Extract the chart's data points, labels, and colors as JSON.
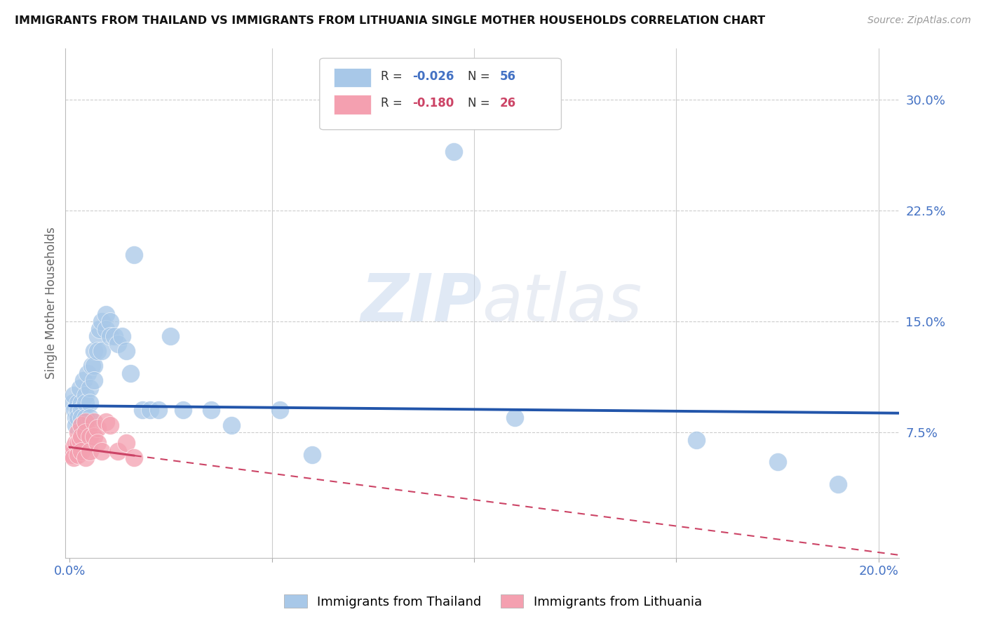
{
  "title": "IMMIGRANTS FROM THAILAND VS IMMIGRANTS FROM LITHUANIA SINGLE MOTHER HOUSEHOLDS CORRELATION CHART",
  "source": "Source: ZipAtlas.com",
  "ylabel": "Single Mother Households",
  "right_yticks": [
    "30.0%",
    "22.5%",
    "15.0%",
    "7.5%"
  ],
  "right_ytick_vals": [
    0.3,
    0.225,
    0.15,
    0.075
  ],
  "ylim": [
    -0.01,
    0.335
  ],
  "xlim": [
    -0.001,
    0.205
  ],
  "legend_label1": "Immigrants from Thailand",
  "legend_label2": "Immigrants from Lithuania",
  "color_thailand": "#a8c8e8",
  "color_lithuania": "#f4a0b0",
  "color_line_thailand": "#2255aa",
  "color_line_lithuania": "#cc4466",
  "watermark_zip": "ZIP",
  "watermark_atlas": "atlas",
  "thailand_x": [
    0.0008,
    0.001,
    0.0012,
    0.0015,
    0.0015,
    0.002,
    0.002,
    0.002,
    0.0025,
    0.003,
    0.003,
    0.003,
    0.003,
    0.003,
    0.0035,
    0.004,
    0.004,
    0.004,
    0.004,
    0.0045,
    0.005,
    0.005,
    0.005,
    0.0055,
    0.006,
    0.006,
    0.006,
    0.007,
    0.007,
    0.0075,
    0.008,
    0.008,
    0.009,
    0.009,
    0.01,
    0.01,
    0.011,
    0.012,
    0.013,
    0.014,
    0.015,
    0.016,
    0.018,
    0.02,
    0.022,
    0.025,
    0.028,
    0.035,
    0.04,
    0.052,
    0.06,
    0.095,
    0.11,
    0.155,
    0.175,
    0.19
  ],
  "thailand_y": [
    0.095,
    0.1,
    0.09,
    0.085,
    0.08,
    0.095,
    0.09,
    0.085,
    0.105,
    0.095,
    0.09,
    0.085,
    0.08,
    0.075,
    0.11,
    0.1,
    0.095,
    0.085,
    0.08,
    0.115,
    0.105,
    0.095,
    0.085,
    0.12,
    0.13,
    0.12,
    0.11,
    0.14,
    0.13,
    0.145,
    0.15,
    0.13,
    0.155,
    0.145,
    0.15,
    0.14,
    0.14,
    0.135,
    0.14,
    0.13,
    0.115,
    0.195,
    0.09,
    0.09,
    0.09,
    0.14,
    0.09,
    0.09,
    0.08,
    0.09,
    0.06,
    0.265,
    0.085,
    0.07,
    0.055,
    0.04
  ],
  "lithuania_x": [
    0.0005,
    0.001,
    0.001,
    0.0015,
    0.002,
    0.002,
    0.002,
    0.0025,
    0.003,
    0.003,
    0.003,
    0.004,
    0.004,
    0.004,
    0.005,
    0.005,
    0.006,
    0.006,
    0.007,
    0.007,
    0.008,
    0.009,
    0.01,
    0.012,
    0.014,
    0.016
  ],
  "lithuania_y": [
    0.06,
    0.065,
    0.058,
    0.068,
    0.075,
    0.068,
    0.06,
    0.07,
    0.08,
    0.072,
    0.062,
    0.082,
    0.075,
    0.058,
    0.072,
    0.062,
    0.082,
    0.072,
    0.078,
    0.068,
    0.062,
    0.082,
    0.08,
    0.062,
    0.068,
    0.058
  ],
  "line_th_x0": 0.0,
  "line_th_x1": 0.205,
  "line_th_y0": 0.093,
  "line_th_y1": 0.088,
  "line_li_x0": 0.0,
  "line_li_x1": 0.205,
  "line_li_y0": 0.065,
  "line_li_y1": -0.008
}
